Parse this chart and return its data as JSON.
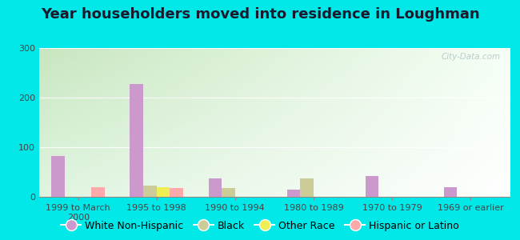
{
  "title": "Year householders moved into residence in Loughman",
  "categories": [
    "1999 to March\n2000",
    "1995 to 1998",
    "1990 to 1994",
    "1980 to 1989",
    "1970 to 1979",
    "1969 or earlier"
  ],
  "series": {
    "White Non-Hispanic": [
      82,
      228,
      37,
      14,
      42,
      20
    ],
    "Black": [
      0,
      22,
      17,
      37,
      0,
      0
    ],
    "Other Race": [
      0,
      20,
      0,
      0,
      0,
      0
    ],
    "Hispanic or Latino": [
      20,
      18,
      0,
      0,
      0,
      0
    ]
  },
  "colors": {
    "White Non-Hispanic": "#cc99cc",
    "Black": "#cccc99",
    "Other Race": "#eeee55",
    "Hispanic or Latino": "#ffaaaa"
  },
  "bar_width": 0.17,
  "ylim": [
    0,
    300
  ],
  "yticks": [
    0,
    100,
    200,
    300
  ],
  "bg_topleft": "#c8e6c0",
  "bg_topright": "#f0fff0",
  "bg_bottomleft": "#d8f0d0",
  "bg_bottomright": "#ffffff",
  "outer_bg": "#00e8e8",
  "title_fontsize": 13,
  "legend_fontsize": 9,
  "tick_fontsize": 8,
  "watermark": "City-Data.com"
}
